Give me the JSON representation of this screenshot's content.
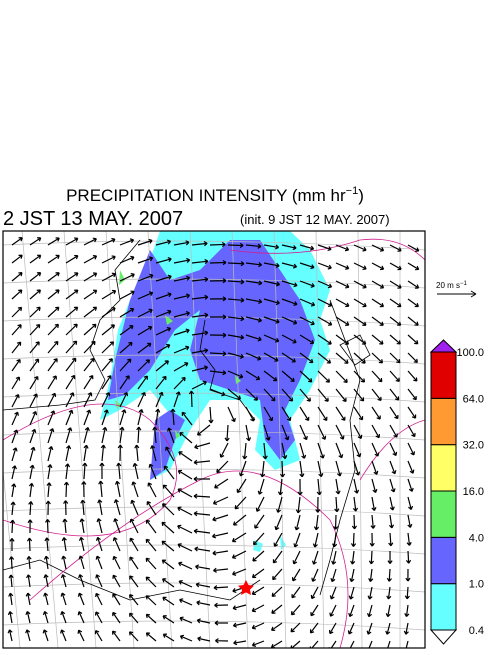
{
  "header": {
    "title": {
      "text": "PRECIPITATION INTENSITY (mm hr",
      "exponent": "−1",
      "close": ")"
    },
    "valid_time": "2 JST 13 MAY. 2007",
    "init_time": "(init. 9 JST 12 MAY. 2007)"
  },
  "wind_scale": {
    "text": "20 m s",
    "exponent": "−1"
  },
  "colorbar": {
    "labels": [
      "0.4",
      "1.0",
      "4.0",
      "16.0",
      "32.0",
      "64.0",
      "100.0"
    ],
    "colors": [
      "#66ffff",
      "#6666ff",
      "#66ee66",
      "#ffff66",
      "#ff9a33",
      "#e00000"
    ],
    "under_color": "#ffffff",
    "over_color": "#a020f0"
  }
}
